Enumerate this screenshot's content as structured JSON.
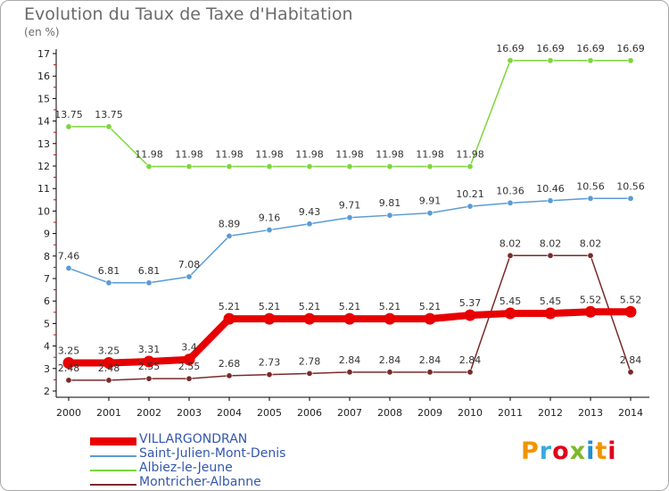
{
  "header": {
    "title": "Evolution du Taux de Taxe d'Habitation",
    "unit": "(en %)"
  },
  "chart_data": {
    "type": "line",
    "title": "Evolution du Taux de Taxe d'Habitation",
    "ylabel": "(en %)",
    "xlabel": "",
    "x": [
      "2000",
      "2001",
      "2002",
      "2003",
      "2004",
      "2005",
      "2006",
      "2007",
      "2008",
      "2009",
      "2010",
      "2011",
      "2012",
      "2013",
      "2014"
    ],
    "ylim": [
      2,
      17
    ],
    "yticks": [
      "2",
      "3",
      "4",
      "5",
      "6",
      "7",
      "8",
      "9",
      "10",
      "11",
      "12",
      "13",
      "14",
      "15",
      "16",
      "17"
    ],
    "grid": false,
    "legend_position": "bottom-left",
    "series": [
      {
        "name": "VILLARGONDRAN",
        "color": "#e80000",
        "values": [
          3.25,
          3.25,
          3.31,
          3.4,
          5.21,
          5.21,
          5.21,
          5.21,
          5.21,
          5.21,
          5.37,
          5.45,
          5.45,
          5.52,
          5.52
        ],
        "labels": [
          "3.25",
          "3.25",
          "3.31",
          "3.4",
          "5.21",
          "5.21",
          "5.21",
          "5.21",
          "5.21",
          "5.21",
          "5.37",
          "5.45",
          "5.45",
          "5.52",
          "5.52"
        ]
      },
      {
        "name": "Saint-Julien-Mont-Denis",
        "color": "#5b9bd5",
        "values": [
          7.46,
          6.81,
          6.81,
          7.08,
          8.89,
          9.16,
          9.43,
          9.71,
          9.81,
          9.91,
          10.21,
          10.36,
          10.46,
          10.56,
          10.56
        ],
        "labels": [
          "7.46",
          "6.81",
          "6.81",
          "7.08",
          "8.89",
          "9.16",
          "9.43",
          "9.71",
          "9.81",
          "9.91",
          "10.21",
          "10.36",
          "10.46",
          "10.56",
          "10.56"
        ]
      },
      {
        "name": "Albiez-le-Jeune",
        "color": "#7dd63d",
        "values": [
          13.75,
          13.75,
          11.98,
          11.98,
          11.98,
          11.98,
          11.98,
          11.98,
          11.98,
          11.98,
          11.98,
          16.69,
          16.69,
          16.69,
          16.69
        ],
        "labels": [
          "13.75",
          "13.75",
          "11.98",
          "11.98",
          "11.98",
          "11.98",
          "11.98",
          "11.98",
          "11.98",
          "11.98",
          "11.98",
          "16.69",
          "16.69",
          "16.69",
          "16.69"
        ]
      },
      {
        "name": "Montricher-Albanne",
        "color": "#7a2a2a",
        "values": [
          2.48,
          2.48,
          2.55,
          2.55,
          2.68,
          2.73,
          2.78,
          2.84,
          2.84,
          2.84,
          2.84,
          8.02,
          8.02,
          8.02,
          2.84
        ],
        "labels": [
          "2.48",
          "2.48",
          "2.55",
          "2.55",
          "2.68",
          "2.73",
          "2.78",
          "2.84",
          "2.84",
          "2.84",
          "2.84",
          "8.02",
          "8.02",
          "8.02",
          "2.84"
        ]
      }
    ]
  },
  "legend": {
    "items": [
      {
        "label": "VILLARGONDRAN",
        "color": "#e80000"
      },
      {
        "label": "Saint-Julien-Mont-Denis",
        "color": "#5b9bd5"
      },
      {
        "label": "Albiez-le-Jeune",
        "color": "#7dd63d"
      },
      {
        "label": "Montricher-Albanne",
        "color": "#7a2a2a"
      }
    ]
  },
  "logo": {
    "text": "Proxiti",
    "colors": [
      "#f29400",
      "#3aa9e0",
      "#e2001a",
      "#7cb928",
      "#1f8fd2",
      "#f29400",
      "#e2001a"
    ]
  }
}
